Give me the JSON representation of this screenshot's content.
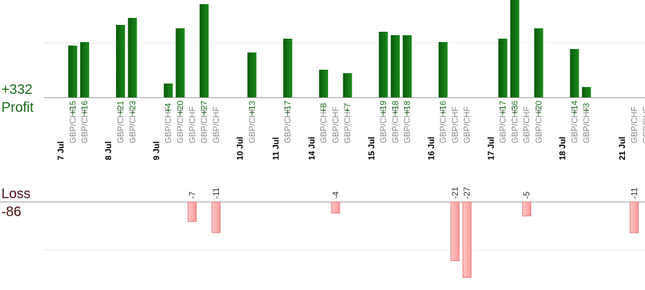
{
  "summary": {
    "profit_value": "+332",
    "profit_label": "Profit",
    "loss_label": "Loss",
    "loss_value": "-86"
  },
  "colors": {
    "profit_bar": "#0f6a0f",
    "profit_text": "#1a6b1a",
    "loss_bar": "#ffb3b3",
    "loss_text": "#333333",
    "date_text": "#000000",
    "pair_text": "#888888",
    "gridline": "#e6e6e6",
    "axis": "#999999"
  },
  "chart_data": {
    "type": "bar",
    "title": "",
    "xlabel": "",
    "ylabel": "",
    "profit_axis_ylim": [
      0,
      25
    ],
    "loss_axis_ylim": [
      -20,
      0
    ],
    "grid": true,
    "categories": [
      {
        "kind": "date",
        "label": "7 Jul"
      },
      {
        "kind": "trade",
        "label": "GBP/CHF",
        "value": 15
      },
      {
        "kind": "trade",
        "label": "GBP/CHF",
        "value": 16
      },
      {
        "kind": "gap"
      },
      {
        "kind": "date",
        "label": "8 Jul"
      },
      {
        "kind": "trade",
        "label": "GBP/CHF",
        "value": 21
      },
      {
        "kind": "trade",
        "label": "GBP/CHF",
        "value": 23
      },
      {
        "kind": "gap"
      },
      {
        "kind": "date",
        "label": "9 Jul"
      },
      {
        "kind": "trade",
        "label": "GBP/CHF",
        "value": 4
      },
      {
        "kind": "trade",
        "label": "GBP/CHF",
        "value": 20
      },
      {
        "kind": "trade",
        "label": "GBP/CHF",
        "value": -7
      },
      {
        "kind": "trade",
        "label": "GBP/CHF",
        "value": 27
      },
      {
        "kind": "trade",
        "label": "GBP/CHF",
        "value": -11
      },
      {
        "kind": "gap"
      },
      {
        "kind": "date",
        "label": "10 Jul"
      },
      {
        "kind": "trade",
        "label": "GBP/CHF",
        "value": 13
      },
      {
        "kind": "gap"
      },
      {
        "kind": "date",
        "label": "11 Jul"
      },
      {
        "kind": "trade",
        "label": "GBP/CHF",
        "value": 17
      },
      {
        "kind": "gap"
      },
      {
        "kind": "date",
        "label": "14 Jul"
      },
      {
        "kind": "trade",
        "label": "GBP/CHF",
        "value": 8
      },
      {
        "kind": "trade",
        "label": "GBP/CHF",
        "value": -4
      },
      {
        "kind": "trade",
        "label": "GBP/CHF",
        "value": 7
      },
      {
        "kind": "gap"
      },
      {
        "kind": "date",
        "label": "15 Jul"
      },
      {
        "kind": "trade",
        "label": "GBP/CHF",
        "value": 19
      },
      {
        "kind": "trade",
        "label": "GBP/CHF",
        "value": 18
      },
      {
        "kind": "trade",
        "label": "GBP/CHF",
        "value": 18
      },
      {
        "kind": "gap"
      },
      {
        "kind": "date",
        "label": "16 Jul"
      },
      {
        "kind": "trade",
        "label": "GBP/CHF",
        "value": 16
      },
      {
        "kind": "trade",
        "label": "GBP/CHF",
        "value": -21
      },
      {
        "kind": "trade",
        "label": "GBP/CHF",
        "value": -27
      },
      {
        "kind": "gap"
      },
      {
        "kind": "date",
        "label": "17 Jul"
      },
      {
        "kind": "trade",
        "label": "GBP/CHF",
        "value": 17
      },
      {
        "kind": "trade",
        "label": "GBP/CHF",
        "value": 36
      },
      {
        "kind": "trade",
        "label": "GBP/CHF",
        "value": -5
      },
      {
        "kind": "trade",
        "label": "GBP/CHF",
        "value": 20
      },
      {
        "kind": "gap"
      },
      {
        "kind": "date",
        "label": "18 Jul"
      },
      {
        "kind": "trade",
        "label": "GBP/CHF",
        "value": 14
      },
      {
        "kind": "trade",
        "label": "GBP/CHF",
        "value": 3
      },
      {
        "kind": "gap"
      },
      {
        "kind": "gap"
      },
      {
        "kind": "date",
        "label": "21 Jul"
      },
      {
        "kind": "trade",
        "label": "GBP/CHF",
        "value": -11
      },
      {
        "kind": "trade",
        "label": "GBP/CHF"
      }
    ]
  }
}
